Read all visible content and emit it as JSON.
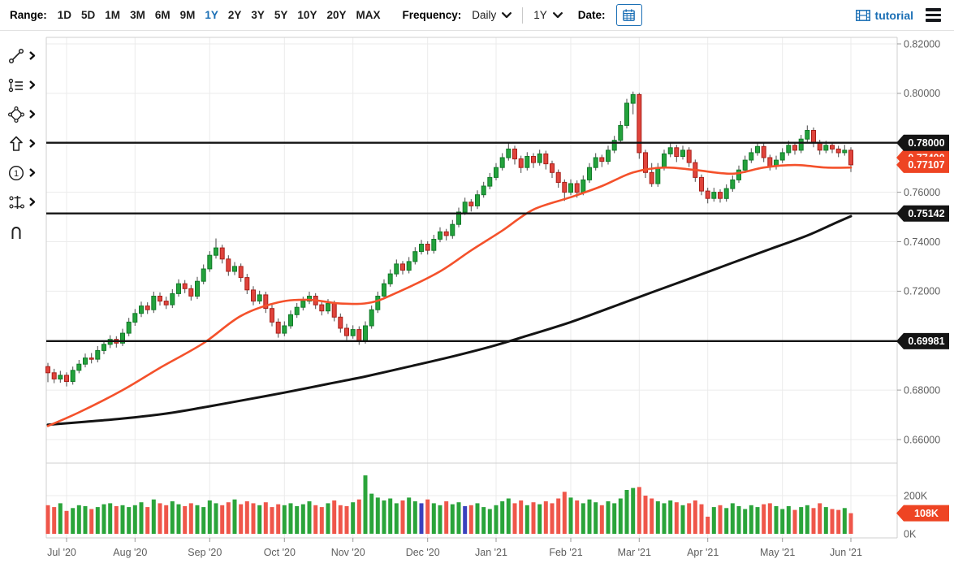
{
  "toolbar": {
    "range_label": "Range:",
    "range_options": [
      "1D",
      "5D",
      "1M",
      "3M",
      "6M",
      "9M",
      "1Y",
      "2Y",
      "3Y",
      "5Y",
      "10Y",
      "20Y",
      "MAX"
    ],
    "active_range": "1Y",
    "frequency_label": "Frequency:",
    "frequency_value": "Daily",
    "period_value": "1Y",
    "date_label": "Date:",
    "tutorial_label": "tutorial",
    "accent_blue": "#1b6fb5"
  },
  "sidebar": {
    "tools": [
      {
        "icon": "trendline-icon",
        "has_submenu": true
      },
      {
        "icon": "annotation-lines-icon",
        "has_submenu": true
      },
      {
        "icon": "shapes-icon",
        "has_submenu": true
      },
      {
        "icon": "arrow-icon",
        "has_submenu": true
      },
      {
        "icon": "number-annotation-icon",
        "has_submenu": true
      },
      {
        "icon": "measure-icon",
        "has_submenu": true
      },
      {
        "icon": "magnet-icon",
        "has_submenu": false
      }
    ]
  },
  "chart_data": {
    "type": "candlestick",
    "panes": [
      "price",
      "volume"
    ],
    "colors": {
      "up_fill": "#23a23c",
      "up_stroke": "#117a28",
      "down_fill": "#e0443c",
      "down_stroke": "#a8201a",
      "wick": "#4a4a4a",
      "vol_up": "#2aa43a",
      "vol_down": "#ef564a",
      "vol_special": "#3a41bd",
      "ma_fast": "#f4512b",
      "ma_slow": "#141414",
      "level_line": "#141414",
      "badge_black": "#141414",
      "badge_orange": "#ee4423",
      "grid": "#ebebeb",
      "border": "#cfcfcf",
      "axis_text": "#5e5e5e"
    },
    "price_axis": {
      "min": 0.66,
      "max": 0.82,
      "tick_step": 0.02,
      "ticks": [
        0.82,
        0.8,
        0.78,
        0.76,
        0.74,
        0.72,
        0.7,
        0.68,
        0.66
      ],
      "visible_labels": [
        {
          "v": 0.82,
          "t": "0.82000"
        },
        {
          "v": 0.8,
          "t": "0.80000"
        },
        {
          "v": 0.76,
          "t": "0.76000"
        },
        {
          "v": 0.74,
          "t": "0.74000"
        },
        {
          "v": 0.72,
          "t": "0.72000"
        },
        {
          "v": 0.68,
          "t": "0.68000"
        },
        {
          "v": 0.66,
          "t": "0.66000"
        }
      ]
    },
    "volume_axis": {
      "min": 0,
      "grid": 200,
      "labels": [
        {
          "v": 200,
          "t": "200K"
        },
        {
          "v": 0,
          "t": "0K"
        }
      ]
    },
    "levels": [
      {
        "value": 0.78,
        "label": "0.78000"
      },
      {
        "value": 0.75142,
        "label": "0.75142"
      },
      {
        "value": 0.69981,
        "label": "0.69981"
      }
    ],
    "last_price_badge": {
      "value": 0.77107,
      "label": "0.77107"
    },
    "occluded_badge": {
      "value": 0.774,
      "label": "0.77400"
    },
    "volume_badge": {
      "value": 108,
      "label": "108K"
    },
    "months": [
      {
        "label": "Jul '20",
        "index": 3
      },
      {
        "label": "Aug '20",
        "index": 14
      },
      {
        "label": "Sep '20",
        "index": 26
      },
      {
        "label": "Oct '20",
        "index": 38
      },
      {
        "label": "Nov '20",
        "index": 49
      },
      {
        "label": "Dec '20",
        "index": 61
      },
      {
        "label": "Jan '21",
        "index": 72
      },
      {
        "label": "Feb '21",
        "index": 84
      },
      {
        "label": "Mar '21",
        "index": 95
      },
      {
        "label": "Apr '21",
        "index": 106
      },
      {
        "label": "May '21",
        "index": 118
      },
      {
        "label": "Jun '21",
        "index": 129
      }
    ],
    "ma_fast": [
      [
        0,
        0.6655
      ],
      [
        5,
        0.671
      ],
      [
        12,
        0.68
      ],
      [
        18,
        0.689
      ],
      [
        25,
        0.699
      ],
      [
        31,
        0.71
      ],
      [
        37,
        0.7155
      ],
      [
        42,
        0.7165
      ],
      [
        47,
        0.715
      ],
      [
        52,
        0.7155
      ],
      [
        57,
        0.7205
      ],
      [
        63,
        0.728
      ],
      [
        68,
        0.7365
      ],
      [
        73,
        0.7445
      ],
      [
        78,
        0.753
      ],
      [
        84,
        0.758
      ],
      [
        89,
        0.7625
      ],
      [
        94,
        0.768
      ],
      [
        99,
        0.77
      ],
      [
        104,
        0.769
      ],
      [
        110,
        0.7675
      ],
      [
        115,
        0.77
      ],
      [
        120,
        0.771
      ],
      [
        125,
        0.77
      ],
      [
        129,
        0.77
      ]
    ],
    "ma_slow": [
      [
        0,
        0.666
      ],
      [
        6,
        0.6672
      ],
      [
        12,
        0.6685
      ],
      [
        19,
        0.6705
      ],
      [
        25,
        0.673
      ],
      [
        32,
        0.6762
      ],
      [
        38,
        0.679
      ],
      [
        45,
        0.6825
      ],
      [
        51,
        0.6855
      ],
      [
        58,
        0.6895
      ],
      [
        64,
        0.693
      ],
      [
        71,
        0.6975
      ],
      [
        77,
        0.702
      ],
      [
        84,
        0.7075
      ],
      [
        90,
        0.713
      ],
      [
        97,
        0.7195
      ],
      [
        103,
        0.725
      ],
      [
        110,
        0.7315
      ],
      [
        116,
        0.737
      ],
      [
        122,
        0.7425
      ],
      [
        126,
        0.747
      ],
      [
        129,
        0.7503
      ]
    ],
    "candles": [
      [
        0.6895,
        0.691,
        0.6832,
        0.687
      ],
      [
        0.687,
        0.6886,
        0.6828,
        0.6845
      ],
      [
        0.6845,
        0.6878,
        0.683,
        0.686
      ],
      [
        0.686,
        0.6872,
        0.6815,
        0.6835
      ],
      [
        0.6835,
        0.6895,
        0.6822,
        0.688
      ],
      [
        0.688,
        0.6922,
        0.6868,
        0.6905
      ],
      [
        0.6905,
        0.6948,
        0.6892,
        0.693
      ],
      [
        0.693,
        0.695,
        0.6908,
        0.6925
      ],
      [
        0.6925,
        0.6978,
        0.6912,
        0.696
      ],
      [
        0.696,
        0.7,
        0.6945,
        0.6985
      ],
      [
        0.6985,
        0.7022,
        0.697,
        0.7005
      ],
      [
        0.7005,
        0.7018,
        0.6972,
        0.699
      ],
      [
        0.699,
        0.7048,
        0.6978,
        0.703
      ],
      [
        0.703,
        0.7092,
        0.7018,
        0.7075
      ],
      [
        0.7075,
        0.7128,
        0.706,
        0.711
      ],
      [
        0.711,
        0.7158,
        0.7095,
        0.714
      ],
      [
        0.714,
        0.7155,
        0.7108,
        0.7125
      ],
      [
        0.7125,
        0.7198,
        0.7112,
        0.718
      ],
      [
        0.718,
        0.7195,
        0.7142,
        0.716
      ],
      [
        0.716,
        0.7178,
        0.7128,
        0.7145
      ],
      [
        0.7145,
        0.7208,
        0.7132,
        0.719
      ],
      [
        0.719,
        0.7248,
        0.7178,
        0.723
      ],
      [
        0.723,
        0.7245,
        0.7192,
        0.721
      ],
      [
        0.721,
        0.7225,
        0.7162,
        0.718
      ],
      [
        0.718,
        0.7258,
        0.7168,
        0.724
      ],
      [
        0.724,
        0.7308,
        0.7228,
        0.729
      ],
      [
        0.729,
        0.7362,
        0.7278,
        0.7345
      ],
      [
        0.7345,
        0.7413,
        0.7332,
        0.7375
      ],
      [
        0.7375,
        0.7388,
        0.7312,
        0.733
      ],
      [
        0.733,
        0.7345,
        0.7262,
        0.728
      ],
      [
        0.728,
        0.7318,
        0.7265,
        0.73
      ],
      [
        0.73,
        0.7312,
        0.7238,
        0.7255
      ],
      [
        0.7255,
        0.727,
        0.7188,
        0.7205
      ],
      [
        0.7205,
        0.722,
        0.7143,
        0.716
      ],
      [
        0.716,
        0.7202,
        0.7148,
        0.7185
      ],
      [
        0.7185,
        0.7198,
        0.7112,
        0.713
      ],
      [
        0.713,
        0.7145,
        0.7058,
        0.7075
      ],
      [
        0.7075,
        0.709,
        0.7012,
        0.703
      ],
      [
        0.703,
        0.7078,
        0.7018,
        0.706
      ],
      [
        0.706,
        0.7122,
        0.7048,
        0.7105
      ],
      [
        0.7105,
        0.7152,
        0.7092,
        0.7135
      ],
      [
        0.7135,
        0.7178,
        0.7122,
        0.716
      ],
      [
        0.716,
        0.7198,
        0.7148,
        0.718
      ],
      [
        0.718,
        0.7192,
        0.7128,
        0.7145
      ],
      [
        0.7145,
        0.716,
        0.7102,
        0.712
      ],
      [
        0.712,
        0.7168,
        0.7108,
        0.715
      ],
      [
        0.715,
        0.7162,
        0.7078,
        0.7095
      ],
      [
        0.7095,
        0.711,
        0.7032,
        0.705
      ],
      [
        0.705,
        0.7068,
        0.7002,
        0.702
      ],
      [
        0.702,
        0.7062,
        0.7008,
        0.7045
      ],
      [
        0.7045,
        0.7058,
        0.6983,
        0.7
      ],
      [
        0.7,
        0.7078,
        0.6988,
        0.706
      ],
      [
        0.706,
        0.7142,
        0.7048,
        0.7125
      ],
      [
        0.7125,
        0.7198,
        0.7112,
        0.718
      ],
      [
        0.718,
        0.7248,
        0.7168,
        0.723
      ],
      [
        0.723,
        0.7288,
        0.7218,
        0.727
      ],
      [
        0.727,
        0.7328,
        0.7258,
        0.731
      ],
      [
        0.731,
        0.7322,
        0.7268,
        0.7285
      ],
      [
        0.7285,
        0.7338,
        0.7272,
        0.732
      ],
      [
        0.732,
        0.7378,
        0.7308,
        0.736
      ],
      [
        0.736,
        0.7408,
        0.7348,
        0.739
      ],
      [
        0.739,
        0.7402,
        0.7348,
        0.7365
      ],
      [
        0.7365,
        0.7428,
        0.7352,
        0.741
      ],
      [
        0.741,
        0.7458,
        0.7398,
        0.744
      ],
      [
        0.744,
        0.7452,
        0.7405,
        0.7425
      ],
      [
        0.7425,
        0.7488,
        0.7412,
        0.747
      ],
      [
        0.747,
        0.7538,
        0.7458,
        0.752
      ],
      [
        0.752,
        0.7578,
        0.7508,
        0.756
      ],
      [
        0.756,
        0.7572,
        0.7522,
        0.7545
      ],
      [
        0.7545,
        0.7608,
        0.7532,
        0.759
      ],
      [
        0.759,
        0.7642,
        0.7578,
        0.7625
      ],
      [
        0.7625,
        0.7678,
        0.7612,
        0.766
      ],
      [
        0.766,
        0.7718,
        0.7648,
        0.77
      ],
      [
        0.77,
        0.7758,
        0.7688,
        0.774
      ],
      [
        0.774,
        0.7798,
        0.7728,
        0.7775
      ],
      [
        0.7775,
        0.7788,
        0.7712,
        0.7735
      ],
      [
        0.7735,
        0.7748,
        0.7678,
        0.77
      ],
      [
        0.77,
        0.7762,
        0.7688,
        0.7745
      ],
      [
        0.7745,
        0.7758,
        0.7698,
        0.772
      ],
      [
        0.772,
        0.7772,
        0.7708,
        0.7755
      ],
      [
        0.7755,
        0.7768,
        0.7692,
        0.7715
      ],
      [
        0.7715,
        0.7728,
        0.7658,
        0.768
      ],
      [
        0.768,
        0.7692,
        0.7618,
        0.764
      ],
      [
        0.764,
        0.7652,
        0.7565,
        0.76
      ],
      [
        0.76,
        0.7652,
        0.7588,
        0.7635
      ],
      [
        0.7635,
        0.7648,
        0.7578,
        0.76
      ],
      [
        0.76,
        0.7668,
        0.7588,
        0.765
      ],
      [
        0.765,
        0.7718,
        0.7638,
        0.77
      ],
      [
        0.77,
        0.7758,
        0.7688,
        0.774
      ],
      [
        0.774,
        0.7752,
        0.7702,
        0.7725
      ],
      [
        0.7725,
        0.7788,
        0.7712,
        0.777
      ],
      [
        0.777,
        0.7828,
        0.7758,
        0.781
      ],
      [
        0.781,
        0.7888,
        0.7798,
        0.787
      ],
      [
        0.787,
        0.7978,
        0.7858,
        0.796
      ],
      [
        0.796,
        0.8007,
        0.7915,
        0.7995
      ],
      [
        0.7995,
        0.8002,
        0.7735,
        0.776
      ],
      [
        0.776,
        0.7772,
        0.7658,
        0.768
      ],
      [
        0.768,
        0.7718,
        0.7622,
        0.7635
      ],
      [
        0.7635,
        0.7718,
        0.7622,
        0.77
      ],
      [
        0.77,
        0.7772,
        0.7688,
        0.7755
      ],
      [
        0.7755,
        0.7798,
        0.7742,
        0.778
      ],
      [
        0.778,
        0.7792,
        0.7722,
        0.7745
      ],
      [
        0.7745,
        0.7788,
        0.7732,
        0.777
      ],
      [
        0.777,
        0.7782,
        0.7702,
        0.772
      ],
      [
        0.772,
        0.7732,
        0.7642,
        0.766
      ],
      [
        0.766,
        0.7672,
        0.7588,
        0.7605
      ],
      [
        0.7605,
        0.7618,
        0.7555,
        0.7575
      ],
      [
        0.7575,
        0.7618,
        0.7562,
        0.76
      ],
      [
        0.76,
        0.7612,
        0.7558,
        0.7575
      ],
      [
        0.7575,
        0.7632,
        0.7562,
        0.7615
      ],
      [
        0.7615,
        0.7668,
        0.7602,
        0.765
      ],
      [
        0.765,
        0.7708,
        0.7638,
        0.769
      ],
      [
        0.769,
        0.7748,
        0.7678,
        0.773
      ],
      [
        0.773,
        0.7778,
        0.7718,
        0.776
      ],
      [
        0.776,
        0.7802,
        0.7748,
        0.7785
      ],
      [
        0.7785,
        0.7798,
        0.7722,
        0.774
      ],
      [
        0.774,
        0.7752,
        0.7688,
        0.7705
      ],
      [
        0.7705,
        0.7748,
        0.7692,
        0.773
      ],
      [
        0.773,
        0.7778,
        0.7718,
        0.776
      ],
      [
        0.776,
        0.7808,
        0.7748,
        0.779
      ],
      [
        0.779,
        0.7802,
        0.7752,
        0.777
      ],
      [
        0.777,
        0.7832,
        0.7758,
        0.7815
      ],
      [
        0.7815,
        0.787,
        0.7802,
        0.785
      ],
      [
        0.785,
        0.7862,
        0.7782,
        0.78
      ],
      [
        0.78,
        0.7812,
        0.7752,
        0.777
      ],
      [
        0.777,
        0.7808,
        0.7758,
        0.779
      ],
      [
        0.779,
        0.78,
        0.7758,
        0.7775
      ],
      [
        0.7775,
        0.7788,
        0.7742,
        0.776
      ],
      [
        0.776,
        0.7792,
        0.7748,
        0.777
      ],
      [
        0.777,
        0.7782,
        0.7682,
        0.7711
      ]
    ],
    "volumes": [
      150,
      140,
      160,
      120,
      135,
      150,
      145,
      130,
      140,
      155,
      160,
      145,
      150,
      140,
      150,
      165,
      140,
      180,
      160,
      150,
      170,
      155,
      145,
      160,
      150,
      140,
      175,
      160,
      150,
      165,
      180,
      155,
      170,
      160,
      150,
      165,
      140,
      155,
      150,
      160,
      145,
      155,
      170,
      150,
      140,
      160,
      175,
      150,
      145,
      165,
      180,
      306,
      210,
      190,
      175,
      185,
      160,
      175,
      190,
      170,
      160,
      180,
      160,
      150,
      170,
      155,
      165,
      145,
      150,
      160,
      140,
      130,
      150,
      170,
      185,
      160,
      175,
      150,
      165,
      155,
      170,
      160,
      185,
      220,
      190,
      175,
      160,
      180,
      165,
      150,
      170,
      160,
      185,
      230,
      240,
      245,
      200,
      185,
      170,
      160,
      175,
      165,
      150,
      160,
      175,
      155,
      90,
      140,
      150,
      135,
      160,
      145,
      130,
      150,
      140,
      155,
      160,
      145,
      130,
      145,
      125,
      140,
      150,
      135,
      160,
      140,
      130,
      125,
      135,
      108
    ],
    "volume_special_indices": [
      60,
      67
    ]
  }
}
